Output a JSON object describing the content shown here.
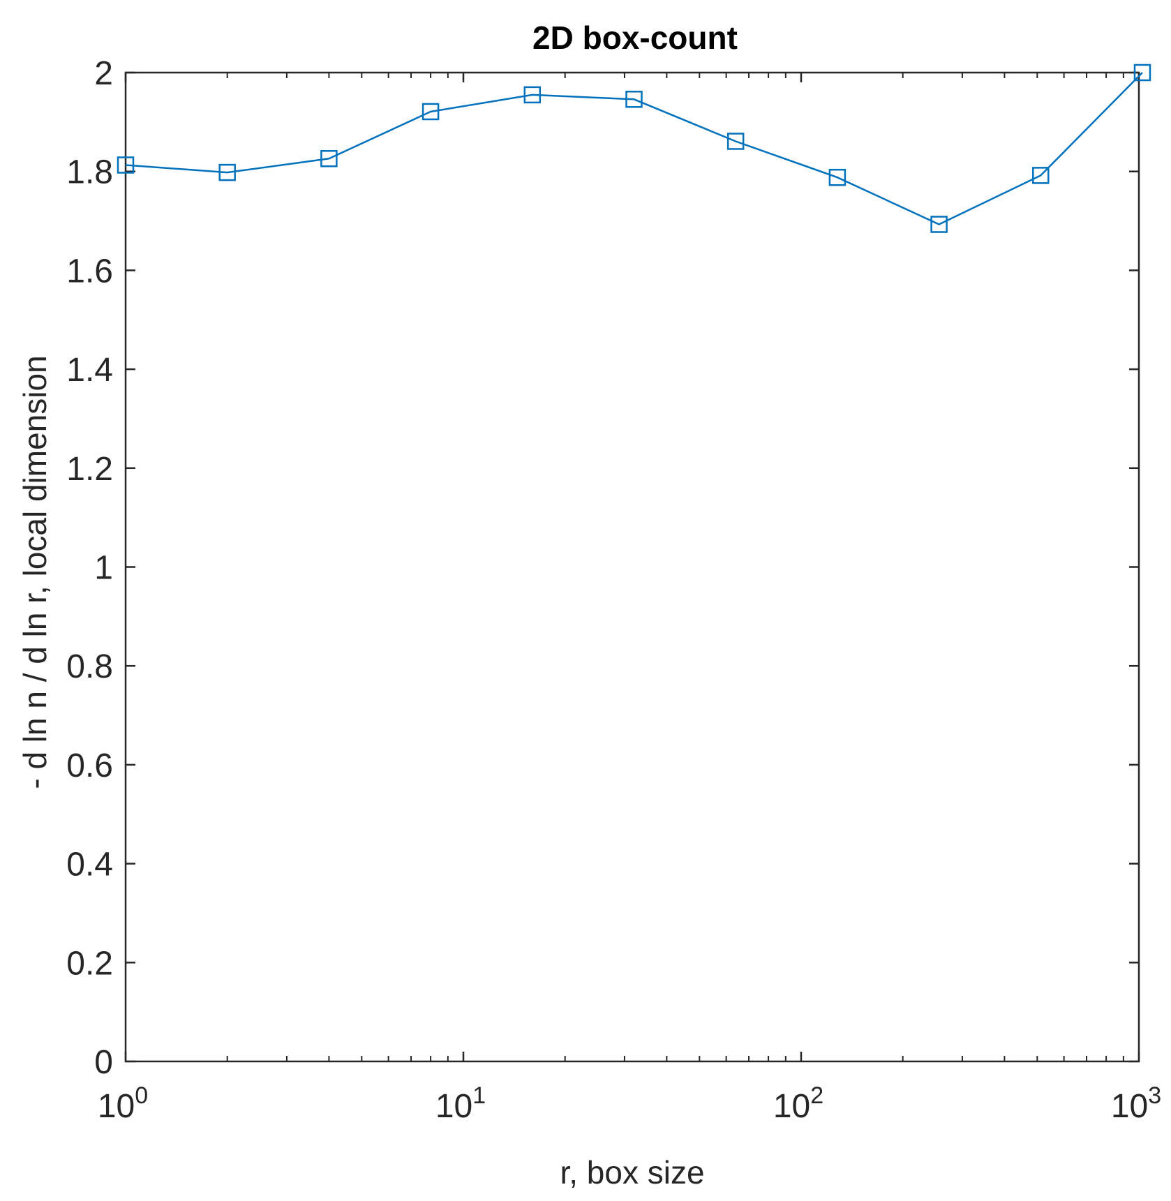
{
  "chart_data": {
    "type": "line",
    "title": "2D box-count",
    "xlabel": "r, box size",
    "ylabel": "- d ln n / d ln r, local dimension",
    "xscale": "log",
    "xlim": [
      1,
      1000
    ],
    "ylim": [
      0,
      2
    ],
    "grid": false,
    "legend": "none",
    "x_tick_labels": [
      {
        "base": "10",
        "exp": "0",
        "value": 1
      },
      {
        "base": "10",
        "exp": "1",
        "value": 10
      },
      {
        "base": "10",
        "exp": "2",
        "value": 100
      },
      {
        "base": "10",
        "exp": "3",
        "value": 1000
      }
    ],
    "y_tick_labels": [
      "0",
      "0.2",
      "0.4",
      "0.6",
      "0.8",
      "1",
      "1.2",
      "1.4",
      "1.6",
      "1.8",
      "2"
    ],
    "y_tick_values": [
      0,
      0.2,
      0.4,
      0.6,
      0.8,
      1,
      1.2,
      1.4,
      1.6,
      1.8,
      2
    ],
    "series": [
      {
        "marker": "square",
        "color": "#0072BD",
        "x": [
          1,
          2,
          4,
          8,
          16,
          32,
          64,
          128,
          256,
          512,
          1024
        ],
        "values": [
          1.813,
          1.798,
          1.826,
          1.921,
          1.955,
          1.946,
          1.861,
          1.788,
          1.693,
          1.792,
          2.0
        ]
      }
    ]
  }
}
